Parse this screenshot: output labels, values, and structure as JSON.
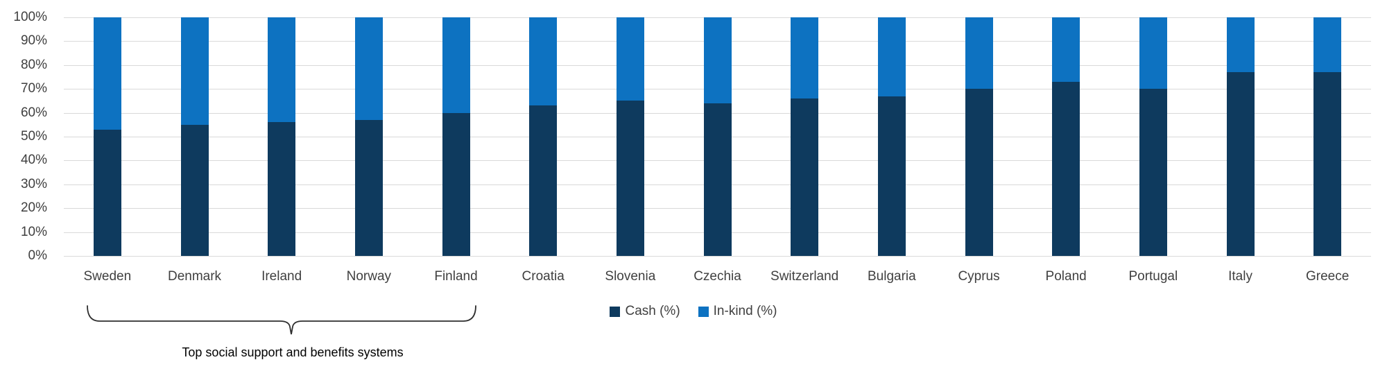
{
  "chart_data": {
    "type": "bar",
    "stacked": true,
    "categories": [
      "Sweden",
      "Denmark",
      "Ireland",
      "Norway",
      "Finland",
      "Croatia",
      "Slovenia",
      "Czechia",
      "Switzerland",
      "Bulgaria",
      "Cyprus",
      "Poland",
      "Portugal",
      "Italy",
      "Greece"
    ],
    "series": [
      {
        "name": "Cash (%)",
        "color": "#0e3a5e",
        "values": [
          53,
          55,
          56,
          57,
          60,
          63,
          65,
          64,
          66,
          67,
          70,
          73,
          70,
          77,
          77
        ]
      },
      {
        "name": "In-kind (%)",
        "color": "#0d72c1",
        "values": [
          47,
          45,
          44,
          43,
          40,
          37,
          35,
          36,
          34,
          33,
          30,
          27,
          30,
          23,
          23
        ]
      }
    ],
    "ylim": [
      0,
      100
    ],
    "y_ticks": [
      "0%",
      "10%",
      "20%",
      "30%",
      "40%",
      "50%",
      "60%",
      "70%",
      "80%",
      "90%",
      "100%"
    ],
    "grid": true,
    "legend_position": "bottom-center"
  },
  "annotation": {
    "label": "Top social support and benefits systems",
    "spans_categories": [
      "Sweden",
      "Denmark",
      "Ireland",
      "Norway",
      "Finland"
    ]
  },
  "colors": {
    "background": "#ffffff",
    "gridline": "#d9d9d9",
    "axis_text": "#3f3f3f",
    "caption_text": "#000000",
    "brace_stroke": "#2e2e2e"
  }
}
